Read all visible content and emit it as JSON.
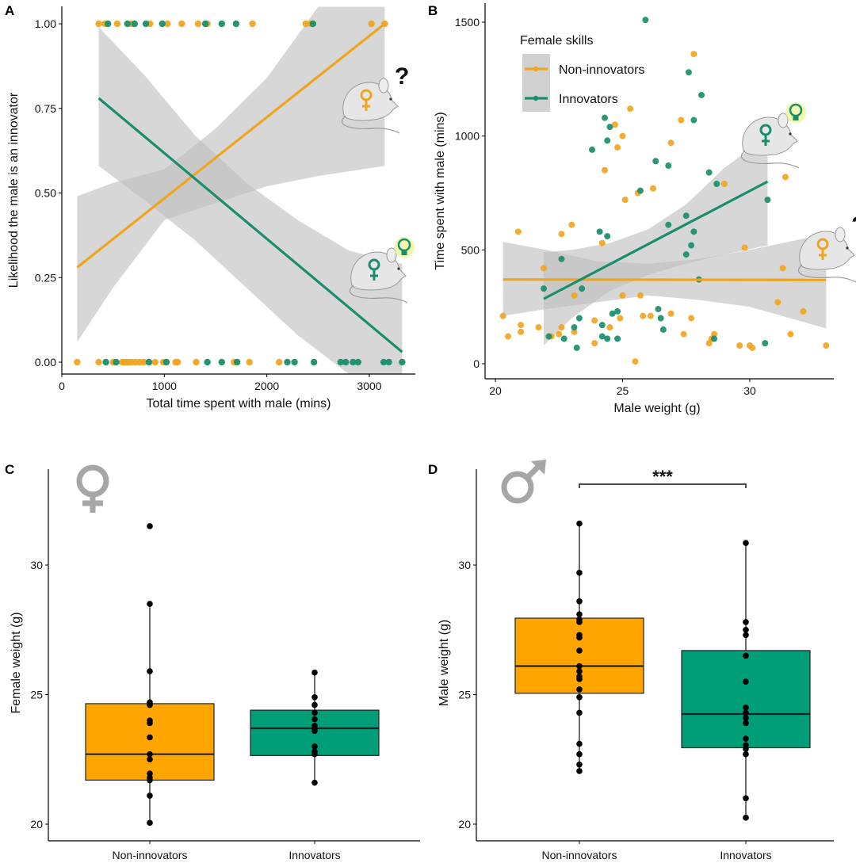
{
  "colors": {
    "non_innovators": "#F0A520",
    "innovators": "#1A8E6C",
    "box_non_innovators": "#FFA500",
    "box_innovators": "#009E77",
    "ci_band": "#BEBEBE",
    "sex_symbol": "#A6A6A6",
    "bulb_glow": "#E8F27A"
  },
  "chart_data": [
    {
      "panel": "A",
      "type": "scatter",
      "title": "",
      "xlabel": "Total time spent with male (mins)",
      "ylabel": "Likelihood the male is an innovator",
      "xlim": [
        0,
        3500
      ],
      "ylim": [
        -0.04,
        1.05
      ],
      "xticks": [
        0,
        1000,
        2000,
        3000
      ],
      "xtick_labels": [
        "0",
        "1000",
        "2000",
        "3000"
      ],
      "yticks": [
        0,
        0.25,
        0.5,
        0.75,
        1.0
      ],
      "ytick_labels": [
        "0.00",
        "0.25",
        "0.50",
        "0.75",
        "1.00"
      ],
      "grid": false,
      "series": [
        {
          "name": "Non-innovators",
          "color_key": "non_innovators",
          "points_y1": [
            360,
            420,
            540,
            680,
            860,
            1030,
            1170,
            1330,
            1420,
            1860,
            2380,
            2430,
            3020,
            3150
          ],
          "points_y0": [
            150,
            360,
            500,
            590,
            610,
            630,
            650,
            680,
            720,
            760,
            800,
            910,
            990,
            1110,
            1130,
            1310,
            1680,
            1830,
            2120
          ],
          "fit": {
            "x": [
              150,
              3150
            ],
            "y": [
              0.28,
              1.0
            ]
          },
          "ci": {
            "x": [
              150,
              500,
              1000,
              1500,
              2000,
              2500,
              3150
            ],
            "lower": [
              0.06,
              0.22,
              0.42,
              0.47,
              0.52,
              0.55,
              0.58
            ],
            "upper": [
              0.49,
              0.53,
              0.57,
              0.69,
              0.84,
              1.05,
              1.05
            ]
          }
        },
        {
          "name": "Innovators",
          "color_key": "innovators",
          "points_y1": [
            450,
            640,
            710,
            820,
            980,
            1400,
            1560,
            1700,
            2450
          ],
          "points_y0": [
            430,
            530,
            850,
            1020,
            1420,
            1560,
            1710,
            2200,
            2270,
            2460,
            2720,
            2770,
            2840,
            2890,
            3140,
            3190,
            3320
          ],
          "fit": {
            "x": [
              360,
              3320
            ],
            "y": [
              0.78,
              0.03
            ]
          },
          "ci": {
            "x": [
              360,
              800,
              1300,
              1800,
              2300,
              2800,
              3320
            ],
            "lower": [
              0.58,
              0.48,
              0.36,
              0.22,
              0.08,
              -0.04,
              -0.04
            ],
            "upper": [
              0.99,
              0.85,
              0.67,
              0.53,
              0.42,
              0.33,
              0.29
            ]
          }
        }
      ],
      "annotations": [
        {
          "icon": "mouse-female-question",
          "series": "Non-innovators",
          "text": "?"
        },
        {
          "icon": "mouse-female-lightbulb",
          "series": "Innovators"
        }
      ]
    },
    {
      "panel": "B",
      "type": "scatter",
      "title": "",
      "xlabel": "Male weight (g)",
      "ylabel": "Time spent with male (mins)",
      "xlim": [
        19.6,
        33.5
      ],
      "ylim": [
        -70,
        1600
      ],
      "xticks": [
        20,
        25,
        30
      ],
      "xtick_labels": [
        "20",
        "25",
        "30"
      ],
      "yticks": [
        0,
        500,
        1000,
        1500
      ],
      "ytick_labels": [
        "0",
        "500",
        "1000",
        "1500"
      ],
      "grid": false,
      "legend": {
        "title": "Female skills",
        "position": "top-left",
        "entries": [
          "Non-innovators",
          "Innovators"
        ]
      },
      "series": [
        {
          "name": "Non-innovators",
          "color_key": "non_innovators",
          "points": [
            [
              20.3,
              210
            ],
            [
              20.5,
              120
            ],
            [
              20.9,
              580
            ],
            [
              21.0,
              140
            ],
            [
              21.0,
              170
            ],
            [
              21.7,
              160
            ],
            [
              21.9,
              420
            ],
            [
              22.2,
              120
            ],
            [
              22.5,
              130
            ],
            [
              22.6,
              160
            ],
            [
              22.6,
              570
            ],
            [
              23.0,
              610
            ],
            [
              23.1,
              300
            ],
            [
              23.1,
              140
            ],
            [
              23.9,
              190
            ],
            [
              23.9,
              90
            ],
            [
              24.2,
              530
            ],
            [
              24.5,
              160
            ],
            [
              24.9,
              200
            ],
            [
              25.0,
              300
            ],
            [
              25.3,
              1120
            ],
            [
              25.0,
              1000
            ],
            [
              25.7,
              300
            ],
            [
              25.5,
              10
            ],
            [
              25.8,
              210
            ],
            [
              26.1,
              210
            ],
            [
              26.2,
              770
            ],
            [
              26.9,
              220
            ],
            [
              27.4,
              130
            ],
            [
              27.7,
              200
            ],
            [
              28.4,
              90
            ],
            [
              28.5,
              110
            ],
            [
              28.6,
              130
            ],
            [
              29.0,
              790
            ],
            [
              29.6,
              80
            ],
            [
              29.8,
              510
            ],
            [
              30.0,
              80
            ],
            [
              30.1,
              70
            ],
            [
              31.1,
              270
            ],
            [
              31.3,
              420
            ],
            [
              31.4,
              820
            ],
            [
              31.6,
              130
            ],
            [
              32.1,
              230
            ],
            [
              33.0,
              80
            ],
            [
              24.3,
              850
            ],
            [
              25.1,
              720
            ],
            [
              25.6,
              750
            ],
            [
              26.9,
              970
            ],
            [
              27.3,
              1070
            ],
            [
              27.8,
              1360
            ],
            [
              24.7,
              1050
            ],
            [
              24.8,
              950
            ]
          ],
          "fit": {
            "x": [
              20.3,
              33.0
            ],
            "y": [
              370,
              368
            ]
          },
          "ci": {
            "x": [
              20.3,
              22,
              24,
              26,
              28,
              30,
              33.0
            ],
            "lower": [
              210,
              240,
              270,
              300,
              280,
              250,
              155
            ],
            "upper": [
              535,
              500,
              450,
              440,
              460,
              500,
              570
            ]
          }
        },
        {
          "name": "Innovators",
          "color_key": "innovators",
          "points": [
            [
              21.9,
              330
            ],
            [
              22.1,
              120
            ],
            [
              22.6,
              460
            ],
            [
              22.7,
              110
            ],
            [
              23.1,
              160
            ],
            [
              23.2,
              70
            ],
            [
              23.3,
              200
            ],
            [
              23.4,
              330
            ],
            [
              24.1,
              580
            ],
            [
              24.2,
              170
            ],
            [
              24.2,
              120
            ],
            [
              24.4,
              560
            ],
            [
              24.4,
              110
            ],
            [
              24.6,
              220
            ],
            [
              24.8,
              230
            ],
            [
              24.8,
              110
            ],
            [
              26.4,
              240
            ],
            [
              26.5,
              200
            ],
            [
              26.6,
              150
            ],
            [
              26.8,
              610
            ],
            [
              27.5,
              480
            ],
            [
              27.7,
              520
            ],
            [
              27.8,
              580
            ],
            [
              28.0,
              370
            ],
            [
              28.6,
              110
            ],
            [
              30.6,
              90
            ],
            [
              30.7,
              720
            ],
            [
              25.9,
              1510
            ],
            [
              23.8,
              940
            ],
            [
              24.3,
              1080
            ],
            [
              24.5,
              1040
            ],
            [
              24.4,
              980
            ],
            [
              26.3,
              890
            ],
            [
              26.8,
              870
            ],
            [
              27.6,
              1280
            ],
            [
              27.8,
              1070
            ],
            [
              28.1,
              1180
            ],
            [
              28.4,
              840
            ],
            [
              28.7,
              790
            ],
            [
              25.7,
              760
            ],
            [
              27.5,
              650
            ]
          ],
          "fit": {
            "x": [
              21.9,
              30.7
            ],
            "y": [
              285,
              800
            ]
          },
          "ci": {
            "x": [
              21.9,
              23,
              24.5,
              26,
              27.5,
              29,
              30.7
            ],
            "lower": [
              80,
              200,
              320,
              390,
              440,
              480,
              520
            ],
            "upper": [
              490,
              500,
              530,
              590,
              700,
              860,
              1000
            ]
          }
        }
      ],
      "annotations": [
        {
          "icon": "mouse-female-lightbulb",
          "series": "Innovators"
        },
        {
          "icon": "mouse-female-question",
          "series": "Non-innovators",
          "text": "?"
        }
      ]
    },
    {
      "panel": "C",
      "type": "box",
      "title": "",
      "xlabel": "",
      "ylabel": "Female weight (g)",
      "ylim": [
        19.2,
        33.2
      ],
      "yticks": [
        20,
        25,
        30
      ],
      "ytick_labels": [
        "20",
        "25",
        "30"
      ],
      "categories": [
        "Non-innovators",
        "Innovators"
      ],
      "icon": "female-symbol",
      "boxes": [
        {
          "name": "Non-innovators",
          "color_key": "box_non_innovators",
          "q1": 21.7,
          "median": 22.7,
          "q3": 24.65,
          "whisker_low": 20.05,
          "whisker_high": 28.5,
          "points": [
            31.5,
            28.5,
            25.9,
            24.7,
            24.6,
            24.0,
            23.9,
            23.35,
            22.7,
            22.5,
            21.95,
            21.8,
            21.7,
            21.1,
            20.05
          ]
        },
        {
          "name": "Innovators",
          "color_key": "box_innovators",
          "q1": 22.65,
          "median": 23.7,
          "q3": 24.4,
          "whisker_low": 21.6,
          "whisker_high": 25.85,
          "points": [
            25.85,
            24.9,
            24.6,
            24.3,
            24.05,
            23.8,
            23.7,
            23.6,
            23.0,
            22.8,
            22.7,
            21.6
          ]
        }
      ]
    },
    {
      "panel": "D",
      "type": "box",
      "title": "",
      "xlabel": "",
      "ylabel": "Male weight (g)",
      "ylim": [
        19.2,
        33.2
      ],
      "yticks": [
        20,
        25,
        30
      ],
      "ytick_labels": [
        "20",
        "25",
        "30"
      ],
      "categories": [
        "Non-innovators",
        "Innovators"
      ],
      "icon": "male-symbol",
      "significance": {
        "label": "***",
        "between": [
          "Non-innovators",
          "Innovators"
        ]
      },
      "boxes": [
        {
          "name": "Non-innovators",
          "color_key": "box_non_innovators",
          "q1": 25.05,
          "median": 26.1,
          "q3": 27.95,
          "whisker_low": 22.05,
          "whisker_high": 31.6,
          "points": [
            31.6,
            29.7,
            28.6,
            28.1,
            27.9,
            27.8,
            27.3,
            27.2,
            26.7,
            26.1,
            25.9,
            25.7,
            25.6,
            25.2,
            24.9,
            24.3,
            23.1,
            22.7,
            22.3,
            22.05
          ]
        },
        {
          "name": "Innovators",
          "color_key": "box_innovators",
          "q1": 22.95,
          "median": 24.25,
          "q3": 26.7,
          "whisker_low": 20.25,
          "whisker_high": 30.85,
          "points": [
            30.85,
            27.8,
            27.5,
            27.3,
            26.5,
            25.5,
            24.5,
            24.3,
            24.1,
            23.9,
            23.3,
            23.05,
            22.9,
            22.7,
            21.0,
            20.25
          ]
        }
      ]
    }
  ]
}
